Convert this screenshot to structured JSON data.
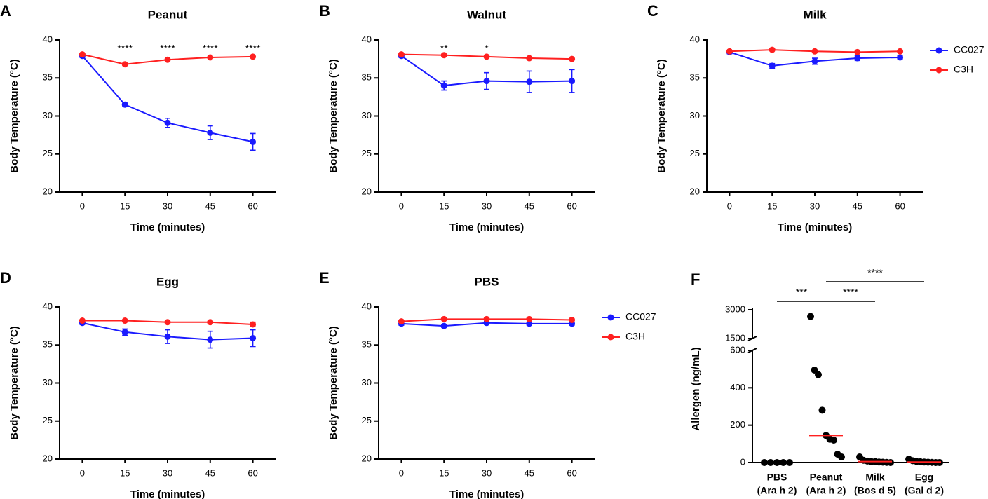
{
  "chart_data": [
    {
      "type": "line",
      "panel": "A",
      "title": "Peanut",
      "x_label": "Time (minutes)",
      "y_label": "Body Temperature (°C)",
      "x": [
        0,
        15,
        30,
        45,
        60
      ],
      "xlim": [
        -8,
        68
      ],
      "xticks": [
        0,
        15,
        30,
        45,
        60
      ],
      "ylim": [
        20,
        40
      ],
      "yticks": [
        20,
        25,
        30,
        35,
        40
      ],
      "series": [
        {
          "color": "#1a1aff",
          "values": [
            37.9,
            31.5,
            29.1,
            27.8,
            26.6
          ],
          "errors": [
            0.2,
            0.2,
            0.6,
            0.9,
            1.1
          ]
        },
        {
          "color": "#ff2020",
          "values": [
            38.1,
            36.8,
            37.4,
            37.7,
            37.8
          ]
        }
      ],
      "annotations": [
        {
          "x": 15,
          "text": "****"
        },
        {
          "x": 30,
          "text": "****"
        },
        {
          "x": 45,
          "text": "****"
        },
        {
          "x": 60,
          "text": "****"
        }
      ]
    },
    {
      "type": "line",
      "panel": "B",
      "title": "Walnut",
      "x_label": "Time (minutes)",
      "y_label": "Body Temperature (°C)",
      "x": [
        0,
        15,
        30,
        45,
        60
      ],
      "xlim": [
        -8,
        68
      ],
      "xticks": [
        0,
        15,
        30,
        45,
        60
      ],
      "ylim": [
        20,
        40
      ],
      "yticks": [
        20,
        25,
        30,
        35,
        40
      ],
      "series": [
        {
          "color": "#1a1aff",
          "values": [
            37.9,
            34.0,
            34.6,
            34.5,
            34.6
          ],
          "errors": [
            0.2,
            0.6,
            1.1,
            1.4,
            1.5
          ]
        },
        {
          "color": "#ff2020",
          "values": [
            38.1,
            38.0,
            37.8,
            37.6,
            37.5
          ]
        }
      ],
      "annotations": [
        {
          "x": 15,
          "text": "**"
        },
        {
          "x": 30,
          "text": "*"
        }
      ]
    },
    {
      "type": "line",
      "panel": "C",
      "title": "Milk",
      "x_label": "Time (minutes)",
      "y_label": "Body Temperature (°C)",
      "x": [
        0,
        15,
        30,
        45,
        60
      ],
      "xlim": [
        -8,
        68
      ],
      "xticks": [
        0,
        15,
        30,
        45,
        60
      ],
      "ylim": [
        20,
        40
      ],
      "yticks": [
        20,
        25,
        30,
        35,
        40
      ],
      "series": [
        {
          "name": "CC027",
          "color": "#1a1aff",
          "values": [
            38.4,
            36.6,
            37.2,
            37.6,
            37.7
          ],
          "errors": [
            0.2,
            0.3,
            0.4,
            0.3,
            0.2
          ]
        },
        {
          "name": "C3H",
          "color": "#ff2020",
          "values": [
            38.5,
            38.7,
            38.5,
            38.4,
            38.5
          ]
        }
      ],
      "legend": "right"
    },
    {
      "type": "line",
      "panel": "D",
      "title": "Egg",
      "x_label": "Time (minutes)",
      "y_label": "Body Temperature (°C)",
      "x": [
        0,
        15,
        30,
        45,
        60
      ],
      "xlim": [
        -8,
        68
      ],
      "xticks": [
        0,
        15,
        30,
        45,
        60
      ],
      "ylim": [
        20,
        40
      ],
      "yticks": [
        20,
        25,
        30,
        35,
        40
      ],
      "series": [
        {
          "color": "#1a1aff",
          "values": [
            37.9,
            36.7,
            36.1,
            35.7,
            35.9
          ],
          "errors": [
            0.2,
            0.4,
            0.9,
            1.1,
            1.1
          ]
        },
        {
          "color": "#ff2020",
          "values": [
            38.2,
            38.2,
            38.0,
            38.0,
            37.7
          ],
          "errors": [
            0.1,
            0.1,
            0.1,
            0.1,
            0.3
          ]
        }
      ]
    },
    {
      "type": "line",
      "panel": "E",
      "title": "PBS",
      "x_label": "Time (minutes)",
      "y_label": "Body Temperature (°C)",
      "x": [
        0,
        15,
        30,
        45,
        60
      ],
      "xlim": [
        -8,
        68
      ],
      "xticks": [
        0,
        15,
        30,
        45,
        60
      ],
      "ylim": [
        20,
        40
      ],
      "yticks": [
        20,
        25,
        30,
        35,
        40
      ],
      "series": [
        {
          "name": "CC027",
          "color": "#1a1aff",
          "values": [
            37.8,
            37.5,
            37.9,
            37.8,
            37.8
          ],
          "errors": [
            0.2,
            0.2,
            0.2,
            0.2,
            0.2
          ]
        },
        {
          "name": "C3H",
          "color": "#ff2020",
          "values": [
            38.1,
            38.4,
            38.4,
            38.4,
            38.3
          ]
        }
      ],
      "legend": "right"
    },
    {
      "type": "dot",
      "panel": "F",
      "y_label": "Allergen (ng/mL)",
      "categories": [
        [
          "PBS",
          "(Ara h 2)"
        ],
        [
          "Peanut",
          "(Ara h 2)"
        ],
        [
          "Milk",
          "(Bos d 5)"
        ],
        [
          "Egg",
          "(Gal d 2)"
        ]
      ],
      "axis_segments": [
        {
          "ylim": [
            0,
            600
          ],
          "yticks": [
            0,
            200,
            400,
            600
          ]
        },
        {
          "ylim": [
            1500,
            3000
          ],
          "yticks": [
            1500,
            3000
          ]
        }
      ],
      "points": [
        [
          0,
          0,
          0,
          0,
          0
        ],
        [
          2650,
          495,
          470,
          280,
          145,
          125,
          120,
          45,
          30
        ],
        [
          30,
          12,
          8,
          5,
          5,
          3,
          2,
          1,
          0
        ],
        [
          18,
          10,
          6,
          4,
          3,
          2,
          1,
          0,
          0
        ]
      ],
      "point_color": "#000000",
      "medians": [
        null,
        145,
        5,
        3
      ],
      "median_color": "#ff2020",
      "brackets": [
        {
          "from": 0,
          "to": 1,
          "text": "***"
        },
        {
          "from": 1,
          "to": 2,
          "text": "****"
        },
        {
          "from": 1,
          "to": 3,
          "text": "****"
        }
      ]
    }
  ]
}
